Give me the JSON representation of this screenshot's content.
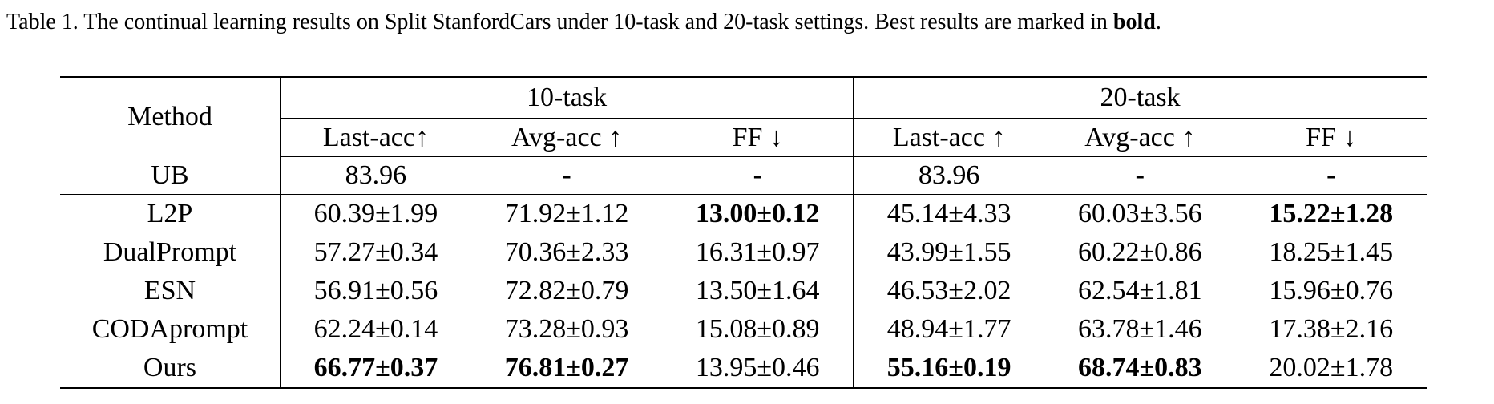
{
  "caption": {
    "text": "Table 1. The continual learning results on Split StanfordCars under 10-task and 20-task settings. Best results are marked in ",
    "emphasis": "bold",
    "end": "."
  },
  "table": {
    "corner": "Method",
    "groups": [
      "10-task",
      "20-task"
    ],
    "columns": [
      "Last-acc↑",
      "Avg-acc ↑",
      "FF ↓",
      "Last-acc ↑",
      "Avg-acc ↑",
      "FF ↓"
    ],
    "rows": [
      [
        "UB",
        "83.96",
        "-",
        "-",
        "83.96",
        "-",
        "-"
      ],
      [
        "L2P",
        "60.39±1.99",
        "71.92±1.12",
        "13.00±0.12",
        "45.14±4.33",
        "60.03±3.56",
        "15.22±1.28"
      ],
      [
        "DualPrompt",
        "57.27±0.34",
        "70.36±2.33",
        "16.31±0.97",
        "43.99±1.55",
        "60.22±0.86",
        "18.25±1.45"
      ],
      [
        "ESN",
        "56.91±0.56",
        "72.82±0.79",
        "13.50±1.64",
        "46.53±2.02",
        "62.54±1.81",
        "15.96±0.76"
      ],
      [
        "CODAprompt",
        "62.24±0.14",
        "73.28±0.93",
        "15.08±0.89",
        "48.94±1.77",
        "63.78±1.46",
        "17.38±2.16"
      ],
      [
        "Ours",
        "66.77±0.37",
        "76.81±0.27",
        "13.95±0.46",
        "55.16±0.19",
        "68.74±0.83",
        "20.02±1.78"
      ]
    ],
    "bold": [
      [],
      [
        3,
        6
      ],
      [],
      [],
      [],
      [
        1,
        2,
        4,
        5
      ]
    ]
  }
}
